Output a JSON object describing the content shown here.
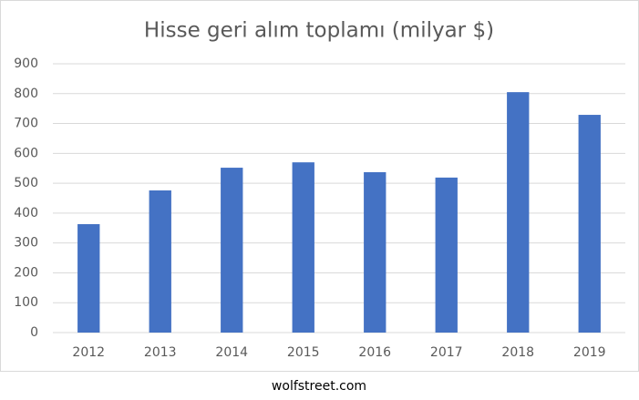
{
  "chart_data": {
    "type": "bar",
    "title": "Hisse geri alım toplamı (milyar $)",
    "categories": [
      "2012",
      "2013",
      "2014",
      "2015",
      "2016",
      "2017",
      "2018",
      "2019"
    ],
    "values": [
      363,
      476,
      552,
      570,
      537,
      519,
      805,
      729
    ],
    "color": "#4472c4",
    "ylim": [
      0,
      900
    ],
    "yticks": [
      0,
      100,
      200,
      300,
      400,
      500,
      600,
      700,
      800,
      900
    ],
    "grid": true,
    "source": "wolfstreet.com"
  }
}
